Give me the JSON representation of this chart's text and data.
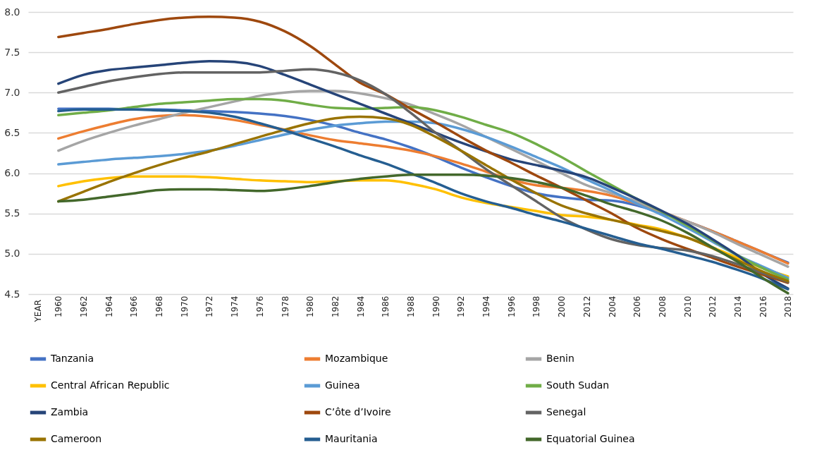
{
  "chart_data": {
    "type": "line",
    "annotations": [
      "YEAR"
    ],
    "categories": [
      "1960",
      "1962",
      "1964",
      "1966",
      "1968",
      "1970",
      "1972",
      "1974",
      "1976",
      "1978",
      "1980",
      "1982",
      "1984",
      "1986",
      "1988",
      "1990",
      "1992",
      "1994",
      "1996",
      "1998",
      "2000",
      "2012",
      "2004",
      "2006",
      "2008",
      "2010",
      "2012",
      "2014",
      "2016",
      "2018"
    ],
    "ylim": [
      4.5,
      8.0
    ],
    "yticks": [
      4.5,
      {
        "value": 5,
        "label": "5.0"
      },
      5.5,
      {
        "value": 6,
        "label": "6.0"
      },
      6.5,
      {
        "value": 7,
        "label": "7.0"
      },
      7.5,
      {
        "value": 8,
        "label": "8.0"
      }
    ],
    "grid": "y",
    "legend": "bottom",
    "marker": "none",
    "line_style": "solid",
    "series": [
      {
        "name": "Tanzania",
        "color": "#4472c4",
        "values": [
          6.8,
          6.8,
          6.8,
          6.79,
          6.79,
          6.78,
          6.77,
          6.76,
          6.74,
          6.71,
          6.66,
          6.59,
          6.5,
          6.42,
          6.32,
          6.2,
          6.07,
          5.95,
          5.84,
          5.75,
          5.7,
          5.67,
          5.66,
          5.6,
          5.5,
          5.4,
          5.28,
          5.15,
          5.02,
          4.89
        ]
      },
      {
        "name": "Mozambique",
        "color": "#ed7d31",
        "values": [
          6.43,
          6.52,
          6.6,
          6.67,
          6.71,
          6.72,
          6.7,
          6.66,
          6.6,
          6.54,
          6.47,
          6.41,
          6.37,
          6.33,
          6.28,
          6.21,
          6.12,
          6.02,
          5.92,
          5.85,
          5.82,
          5.78,
          5.72,
          5.62,
          5.52,
          5.4,
          5.28,
          5.15,
          5.02,
          4.88
        ]
      },
      {
        "name": "Benin",
        "color": "#a5a5a5",
        "values": [
          6.28,
          6.4,
          6.5,
          6.59,
          6.67,
          6.75,
          6.82,
          6.89,
          6.96,
          7.0,
          7.02,
          7.02,
          6.99,
          6.93,
          6.85,
          6.73,
          6.6,
          6.45,
          6.3,
          6.15,
          6.0,
          5.85,
          5.75,
          5.65,
          5.52,
          5.4,
          5.27,
          5.12,
          4.98,
          4.84
        ]
      },
      {
        "name": "Central African Republic",
        "color": "#ffc000",
        "values": [
          5.84,
          5.9,
          5.94,
          5.96,
          5.96,
          5.96,
          5.95,
          5.93,
          5.91,
          5.9,
          5.89,
          5.9,
          5.91,
          5.91,
          5.87,
          5.8,
          5.7,
          5.63,
          5.58,
          5.53,
          5.48,
          5.46,
          5.42,
          5.36,
          5.3,
          5.2,
          5.08,
          4.95,
          4.82,
          4.72
        ]
      },
      {
        "name": "Guinea",
        "color": "#5b9bd5",
        "values": [
          6.11,
          6.14,
          6.17,
          6.19,
          6.21,
          6.24,
          6.28,
          6.34,
          6.41,
          6.48,
          6.54,
          6.59,
          6.62,
          6.64,
          6.64,
          6.62,
          6.55,
          6.45,
          6.33,
          6.2,
          6.07,
          5.92,
          5.78,
          5.62,
          5.48,
          5.32,
          5.15,
          4.98,
          4.84,
          4.7
        ]
      },
      {
        "name": "South Sudan",
        "color": "#70ad47",
        "values": [
          6.72,
          6.75,
          6.78,
          6.82,
          6.86,
          6.88,
          6.9,
          6.92,
          6.92,
          6.9,
          6.85,
          6.81,
          6.8,
          6.81,
          6.82,
          6.78,
          6.7,
          6.6,
          6.5,
          6.36,
          6.2,
          6.02,
          5.85,
          5.68,
          5.52,
          5.35,
          5.17,
          4.98,
          4.82,
          4.68
        ]
      },
      {
        "name": "Zambia",
        "color": "#264478",
        "values": [
          7.11,
          7.22,
          7.28,
          7.31,
          7.34,
          7.37,
          7.39,
          7.38,
          7.33,
          7.22,
          7.1,
          6.98,
          6.86,
          6.74,
          6.62,
          6.5,
          6.38,
          6.27,
          6.17,
          6.1,
          6.03,
          5.95,
          5.82,
          5.68,
          5.53,
          5.37,
          5.18,
          4.98,
          4.75,
          4.57
        ]
      },
      {
        "name": "C’ôte d’Ivoire",
        "color": "#9e480e",
        "values": [
          7.69,
          7.74,
          7.79,
          7.85,
          7.9,
          7.93,
          7.94,
          7.93,
          7.88,
          7.76,
          7.58,
          7.35,
          7.12,
          6.98,
          6.8,
          6.63,
          6.45,
          6.28,
          6.13,
          5.97,
          5.82,
          5.66,
          5.5,
          5.32,
          5.18,
          5.06,
          4.95,
          4.84,
          4.74,
          4.64
        ]
      },
      {
        "name": "Senegal",
        "color": "#636363",
        "values": [
          7.0,
          7.07,
          7.14,
          7.19,
          7.23,
          7.25,
          7.25,
          7.25,
          7.25,
          7.27,
          7.29,
          7.25,
          7.15,
          6.98,
          6.75,
          6.5,
          6.28,
          6.05,
          5.85,
          5.65,
          5.45,
          5.3,
          5.18,
          5.11,
          5.07,
          5.04,
          4.97,
          4.87,
          4.76,
          4.65
        ]
      },
      {
        "name": "Cameroon",
        "color": "#997300",
        "values": [
          5.65,
          5.77,
          5.89,
          6.0,
          6.1,
          6.19,
          6.27,
          6.36,
          6.45,
          6.54,
          6.62,
          6.68,
          6.7,
          6.68,
          6.6,
          6.45,
          6.28,
          6.1,
          5.92,
          5.75,
          5.6,
          5.5,
          5.42,
          5.35,
          5.28,
          5.2,
          5.07,
          4.92,
          4.78,
          4.66
        ]
      },
      {
        "name": "Mauritania",
        "color": "#255e91",
        "values": [
          6.77,
          6.79,
          6.79,
          6.79,
          6.78,
          6.77,
          6.75,
          6.7,
          6.62,
          6.53,
          6.43,
          6.33,
          6.22,
          6.12,
          6.0,
          5.88,
          5.75,
          5.65,
          5.57,
          5.48,
          5.4,
          5.31,
          5.22,
          5.13,
          5.06,
          4.98,
          4.9,
          4.8,
          4.69,
          4.56
        ]
      },
      {
        "name": "Equatorial Guinea",
        "color": "#43682b",
        "values": [
          5.65,
          5.67,
          5.71,
          5.75,
          5.79,
          5.8,
          5.8,
          5.79,
          5.78,
          5.8,
          5.84,
          5.89,
          5.93,
          5.96,
          5.98,
          5.98,
          5.98,
          5.97,
          5.94,
          5.89,
          5.82,
          5.72,
          5.61,
          5.52,
          5.41,
          5.26,
          5.08,
          4.9,
          4.7,
          4.51
        ]
      }
    ]
  }
}
